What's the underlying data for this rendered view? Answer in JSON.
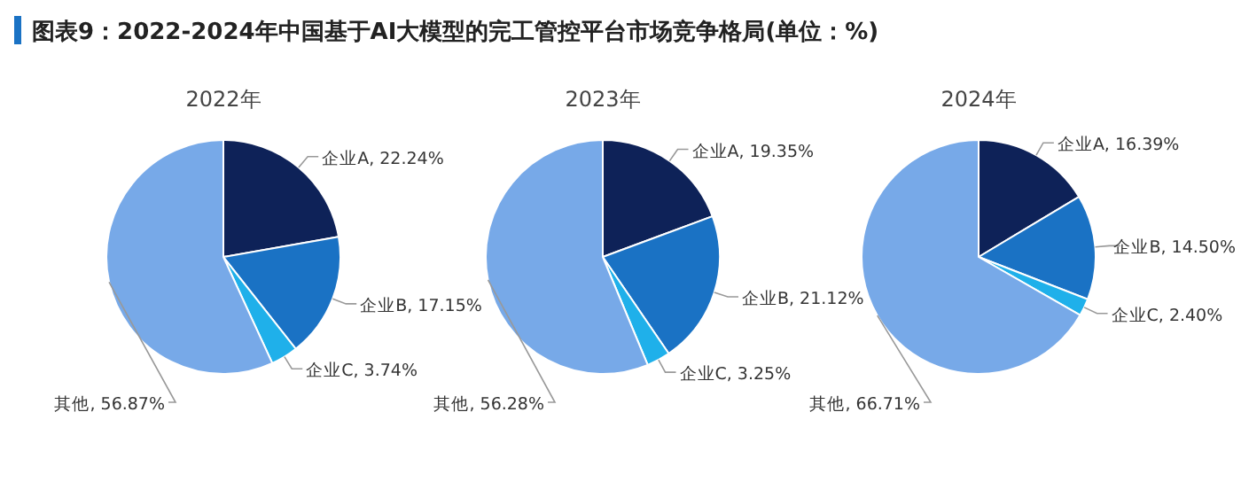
{
  "chart_data": [
    {
      "type": "pie",
      "title": "图表9：2022-2024年中国基于AI大模型的完工管控平台市场竞争格局(单位：%)",
      "subtitle": "2022年",
      "categories": [
        "企业A",
        "企业B",
        "企业C",
        "其他"
      ],
      "values": [
        22.24,
        17.15,
        3.74,
        56.87
      ],
      "colors": [
        "#0e2258",
        "#1a72c4",
        "#1fb0ea",
        "#77a9e8"
      ],
      "value_labels": [
        "22.24%",
        "17.15%",
        "3.74%",
        "56.87%"
      ]
    },
    {
      "type": "pie",
      "subtitle": "2023年",
      "categories": [
        "企业A",
        "企业B",
        "企业C",
        "其他"
      ],
      "values": [
        19.35,
        21.12,
        3.25,
        56.28
      ],
      "colors": [
        "#0e2258",
        "#1a72c4",
        "#1fb0ea",
        "#77a9e8"
      ],
      "value_labels": [
        "19.35%",
        "21.12%",
        "3.25%",
        "56.28%"
      ]
    },
    {
      "type": "pie",
      "subtitle": "2024年",
      "categories": [
        "企业A",
        "企业B",
        "企业C",
        "其他"
      ],
      "values": [
        16.39,
        14.5,
        2.4,
        66.71
      ],
      "colors": [
        "#0e2258",
        "#1a72c4",
        "#1fb0ea",
        "#77a9e8"
      ],
      "value_labels": [
        "16.39%",
        "14.50%",
        "2.40%",
        "66.71%"
      ]
    }
  ]
}
